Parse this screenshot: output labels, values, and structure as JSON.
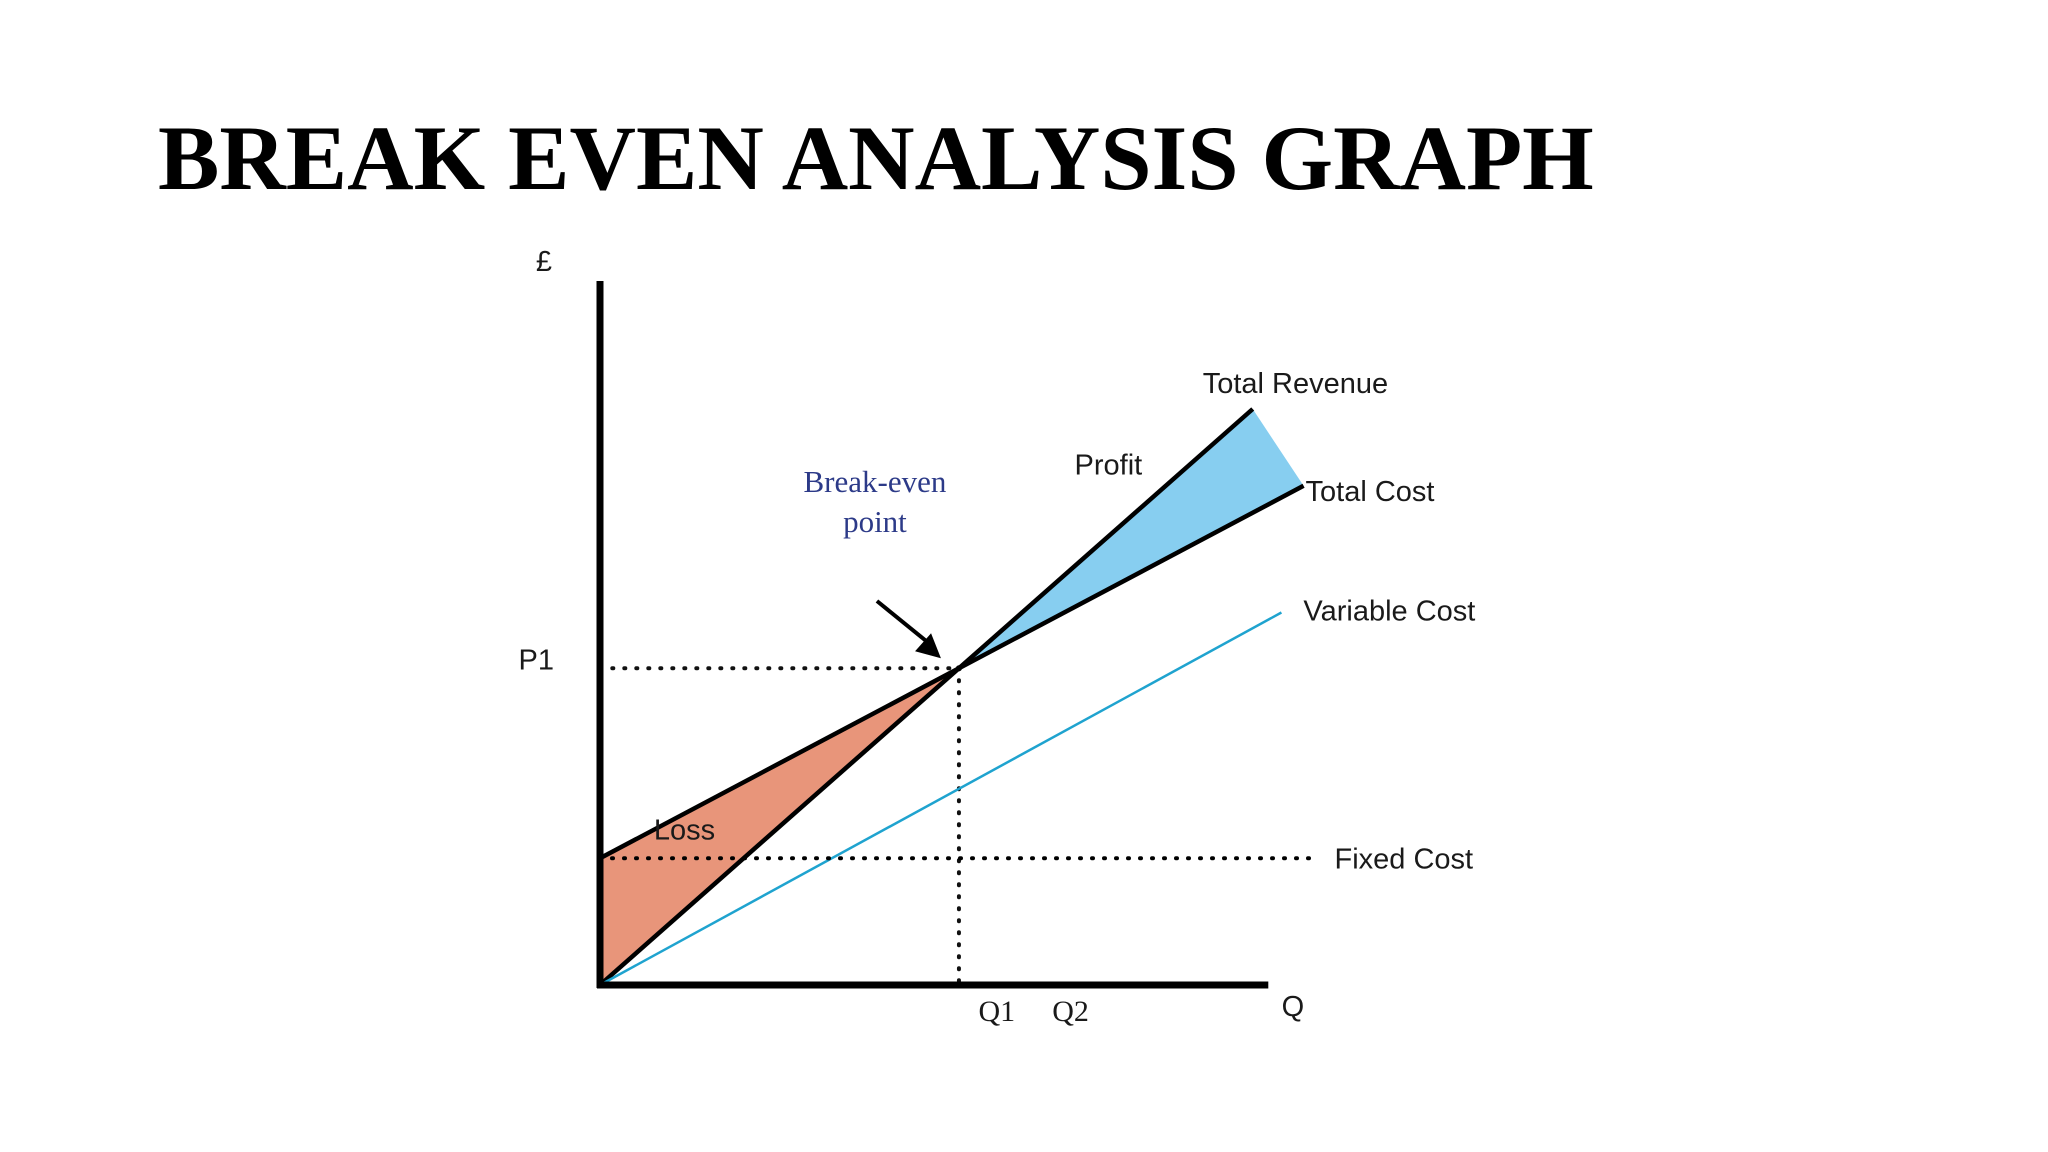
{
  "slide": {
    "title": "BREAK EVEN ANALYSIS GRAPH"
  },
  "chart_data": {
    "type": "line",
    "title": "BREAK EVEN ANALYSIS GRAPH",
    "ylabel": "£",
    "xlabel": "Q",
    "x_ticks": [
      {
        "label": "Q1",
        "value": 0.44
      },
      {
        "label": "Q2",
        "value": 0.53
      }
    ],
    "y_ticks": [
      {
        "label": "P1",
        "value": 0.51
      }
    ],
    "xlim": [
      0,
      1
    ],
    "ylim": [
      0,
      1
    ],
    "grid": false,
    "series": [
      {
        "name": "Total Revenue",
        "color": "#000000",
        "x": [
          0,
          0.796
        ],
        "y": [
          0,
          0.9
        ]
      },
      {
        "name": "Total Cost",
        "color": "#000000",
        "x": [
          0,
          0.858
        ],
        "y": [
          0.198,
          0.78
        ]
      },
      {
        "name": "Variable Cost",
        "color": "#1fa3cf",
        "x": [
          0,
          0.831
        ],
        "y": [
          0,
          0.582
        ]
      },
      {
        "name": "Fixed Cost",
        "color": "#000000",
        "style": "dotted",
        "x": [
          0,
          0.875
        ],
        "y": [
          0.198,
          0.198
        ]
      }
    ],
    "regions": [
      {
        "label": "Loss",
        "color": "#e8957a"
      },
      {
        "label": "Profit",
        "color": "#87cef0"
      }
    ],
    "annotations": [
      {
        "text_lines": [
          "Break-even",
          "point"
        ],
        "color": "#2c3a88",
        "x": 0.44,
        "y": 0.51
      }
    ]
  }
}
